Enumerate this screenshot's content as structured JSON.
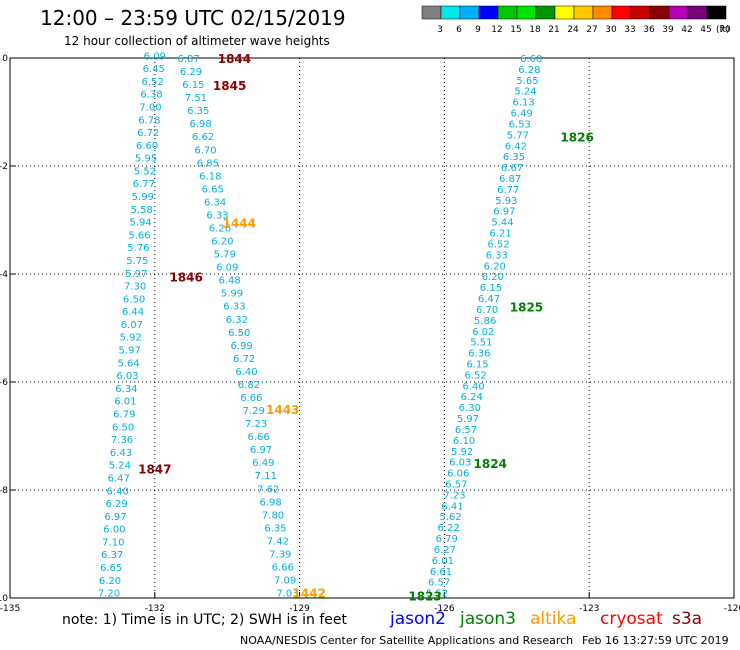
{
  "header": {
    "title": "12:00 – 23:59 UTC 02/15/2019",
    "subtitle": "12 hour collection of altimeter wave heights"
  },
  "color_scale": {
    "labels": [
      "3",
      "6",
      "9",
      "12",
      "15",
      "18",
      "21",
      "24",
      "27",
      "30",
      "33",
      "36",
      "39",
      "42",
      "45",
      "70"
    ],
    "unit": "(ft)",
    "colors": [
      "#808080",
      "#00e8e8",
      "#00b0ff",
      "#0000ff",
      "#00c800",
      "#00e600",
      "#009600",
      "#ffff00",
      "#ffc800",
      "#ff8c00",
      "#ff0000",
      "#c80000",
      "#8c0000",
      "#b400b4",
      "#780078",
      "#000000"
    ]
  },
  "axes": {
    "lon_ticks": [
      -135,
      -132,
      -129,
      -126,
      -123,
      -120
    ],
    "lon_labels": [
      "-135",
      "-132",
      "-129",
      "-126",
      "-123",
      "-120"
    ],
    "lat_ticks": [
      0,
      -2,
      -4,
      -6,
      -8,
      -10
    ],
    "lat_labels": [
      "0",
      "-2",
      "-4",
      "-6",
      "-8",
      "-10"
    ]
  },
  "tracks": [
    {
      "id": "t1",
      "satellite": "jason2",
      "color": "#00b0e0",
      "start": [
        -132.0,
        0.05
      ],
      "end": [
        -132.95,
        -9.9
      ],
      "values": [
        "6.09",
        "6.45",
        "6.52",
        "6.38",
        "7.00",
        "6.78",
        "6.72",
        "6.60",
        "5.95",
        "5.52",
        "6.77",
        "5.99",
        "5.58",
        "5.94",
        "5.66",
        "5.76",
        "5.75",
        "5.97",
        "7.30",
        "6.50",
        "6.44",
        "6.07",
        "5.92",
        "5.97",
        "5.64",
        "6.03",
        "6.34",
        "6.01",
        "6.79",
        "6.50",
        "7.36",
        "6.43",
        "5.24",
        "6.47",
        "6.40",
        "6.29",
        "6.97",
        "6.00",
        "7.10",
        "6.37",
        "6.65",
        "6.20",
        "7.20"
      ]
    },
    {
      "id": "t2",
      "satellite": "jason2",
      "color": "#00b0e0",
      "start": [
        -131.3,
        0.0
      ],
      "end": [
        -129.25,
        -9.9
      ],
      "values": [
        "6.87",
        "6.29",
        "6.15",
        "7.51",
        "6.35",
        "6.98",
        "6.62",
        "6.70",
        "6.85",
        "6.18",
        "6.65",
        "6.34",
        "6.33",
        "6.26",
        "6.20",
        "5.79",
        "6.09",
        "6.48",
        "5.99",
        "6.33",
        "6.32",
        "6.50",
        "6.99",
        "6.72",
        "6.40",
        "6.82",
        "6.66",
        "7.29",
        "7.23",
        "6.66",
        "6.97",
        "6.49",
        "7.11",
        "7.62",
        "6.98",
        "7.80",
        "6.35",
        "7.42",
        "7.39",
        "6.66",
        "7.09",
        "7.03"
      ]
    },
    {
      "id": "t3",
      "satellite": "jason3",
      "color": "#00b0e0",
      "start": [
        -124.2,
        0.0
      ],
      "end": [
        -126.15,
        -9.9
      ],
      "values": [
        "6.60",
        "6.28",
        "5.65",
        "5.24",
        "6.13",
        "6.49",
        "6.53",
        "5.77",
        "6.42",
        "6.35",
        "6.67",
        "6.87",
        "6.77",
        "5.93",
        "6.97",
        "5.44",
        "6.21",
        "6.52",
        "6.33",
        "6.20",
        "6.20",
        "6.15",
        "6.47",
        "6.70",
        "5.86",
        "6.02",
        "5.51",
        "6.36",
        "6.15",
        "6.52",
        "6.40",
        "6.24",
        "6.30",
        "5.97",
        "6.57",
        "6.10",
        "5.92",
        "6.03",
        "6.06",
        "6.57",
        "7.23",
        "6.41",
        "5.62",
        "6.22",
        "6.79",
        "6.27",
        "6.01",
        "6.61",
        "6.57",
        "5.52"
      ]
    }
  ],
  "time_labels": [
    {
      "text": "1844",
      "lon": -130.35,
      "lat": 0.0,
      "color": "#8b0000"
    },
    {
      "text": "1845",
      "lon": -130.45,
      "lat": -0.5,
      "color": "#8b0000"
    },
    {
      "text": "1444",
      "lon": -130.25,
      "lat": -3.05,
      "color": "#ff9a00"
    },
    {
      "text": "1846",
      "lon": -131.35,
      "lat": -4.05,
      "color": "#8b0000"
    },
    {
      "text": "1443",
      "lon": -129.35,
      "lat": -6.5,
      "color": "#ff9a00"
    },
    {
      "text": "1847",
      "lon": -132.0,
      "lat": -7.6,
      "color": "#8b0000"
    },
    {
      "text": "1442",
      "lon": -128.8,
      "lat": -9.9,
      "color": "#ff9a00"
    },
    {
      "text": "1826",
      "lon": -123.25,
      "lat": -1.45,
      "color": "#008000"
    },
    {
      "text": "1825",
      "lon": -124.3,
      "lat": -4.6,
      "color": "#008000"
    },
    {
      "text": "1824",
      "lon": -125.05,
      "lat": -7.5,
      "color": "#008000"
    },
    {
      "text": "1823",
      "lon": -126.4,
      "lat": -9.95,
      "color": "#008000"
    }
  ],
  "note": {
    "prefix": "note:  1) Time is in UTC;  2) SWH is in feet",
    "satellites": [
      {
        "name": "jason2",
        "color": "#0000ff"
      },
      {
        "name": "jason3",
        "color": "#008000"
      },
      {
        "name": "altika",
        "color": "#ff9a00"
      },
      {
        "name": "cryosat",
        "color": "#ff0000"
      },
      {
        "name": "s3a",
        "color": "#8b0000"
      }
    ]
  },
  "footer": {
    "credit": "NOAA/NESDIS Center for Satellite Applications and Research",
    "timestamp": "Feb 16 13:27:59 UTC 2019"
  }
}
